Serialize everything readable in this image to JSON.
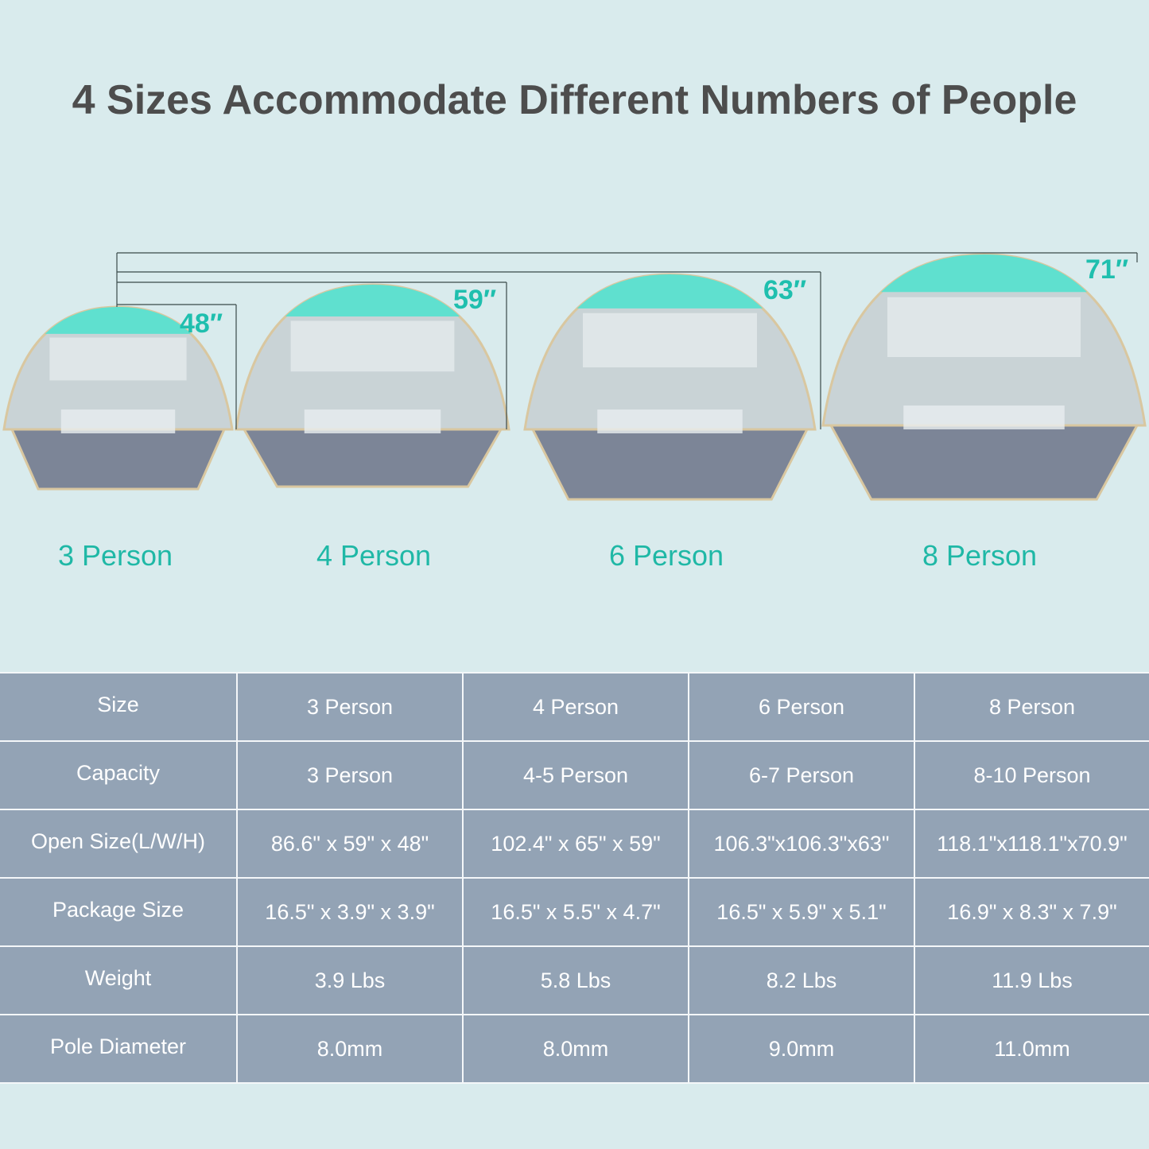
{
  "title": "4 Sizes Accommodate Different Numbers of People",
  "colors": {
    "background": "#d9ebed",
    "accent": "#1fbfae",
    "table": "#93a3b5",
    "title": "#4d4d4d",
    "tent_canopy": "#5fe0cf",
    "tent_floor": "#7c8597",
    "tent_trim": "#d9c7a0"
  },
  "tents": [
    {
      "label": "3 Person",
      "height": "48″"
    },
    {
      "label": "4 Person",
      "height": "59″"
    },
    {
      "label": "6 Person",
      "height": "63″"
    },
    {
      "label": "8 Person",
      "height": "71″"
    }
  ],
  "table": {
    "header": [
      "Size",
      "3 Person",
      "4 Person",
      "6 Person",
      "8 Person"
    ],
    "rows": [
      [
        "Capacity",
        "3 Person",
        "4-5 Person",
        "6-7 Person",
        "8-10 Person"
      ],
      [
        "Open Size(L/W/H)",
        "86.6\" x 59\" x 48\"",
        "102.4\" x 65\" x 59\"",
        "106.3\"x106.3\"x63\"",
        "118.1\"x118.1\"x70.9\""
      ],
      [
        "Package Size",
        "16.5\" x 3.9\" x 3.9\"",
        "16.5\" x 5.5\" x 4.7\"",
        "16.5\" x 5.9\" x 5.1\"",
        "16.9\" x 8.3\" x 7.9\""
      ],
      [
        "Weight",
        "3.9 Lbs",
        "5.8 Lbs",
        "8.2 Lbs",
        "11.9 Lbs"
      ],
      [
        "Pole Diameter",
        "8.0mm",
        "8.0mm",
        "9.0mm",
        "11.0mm"
      ]
    ]
  }
}
